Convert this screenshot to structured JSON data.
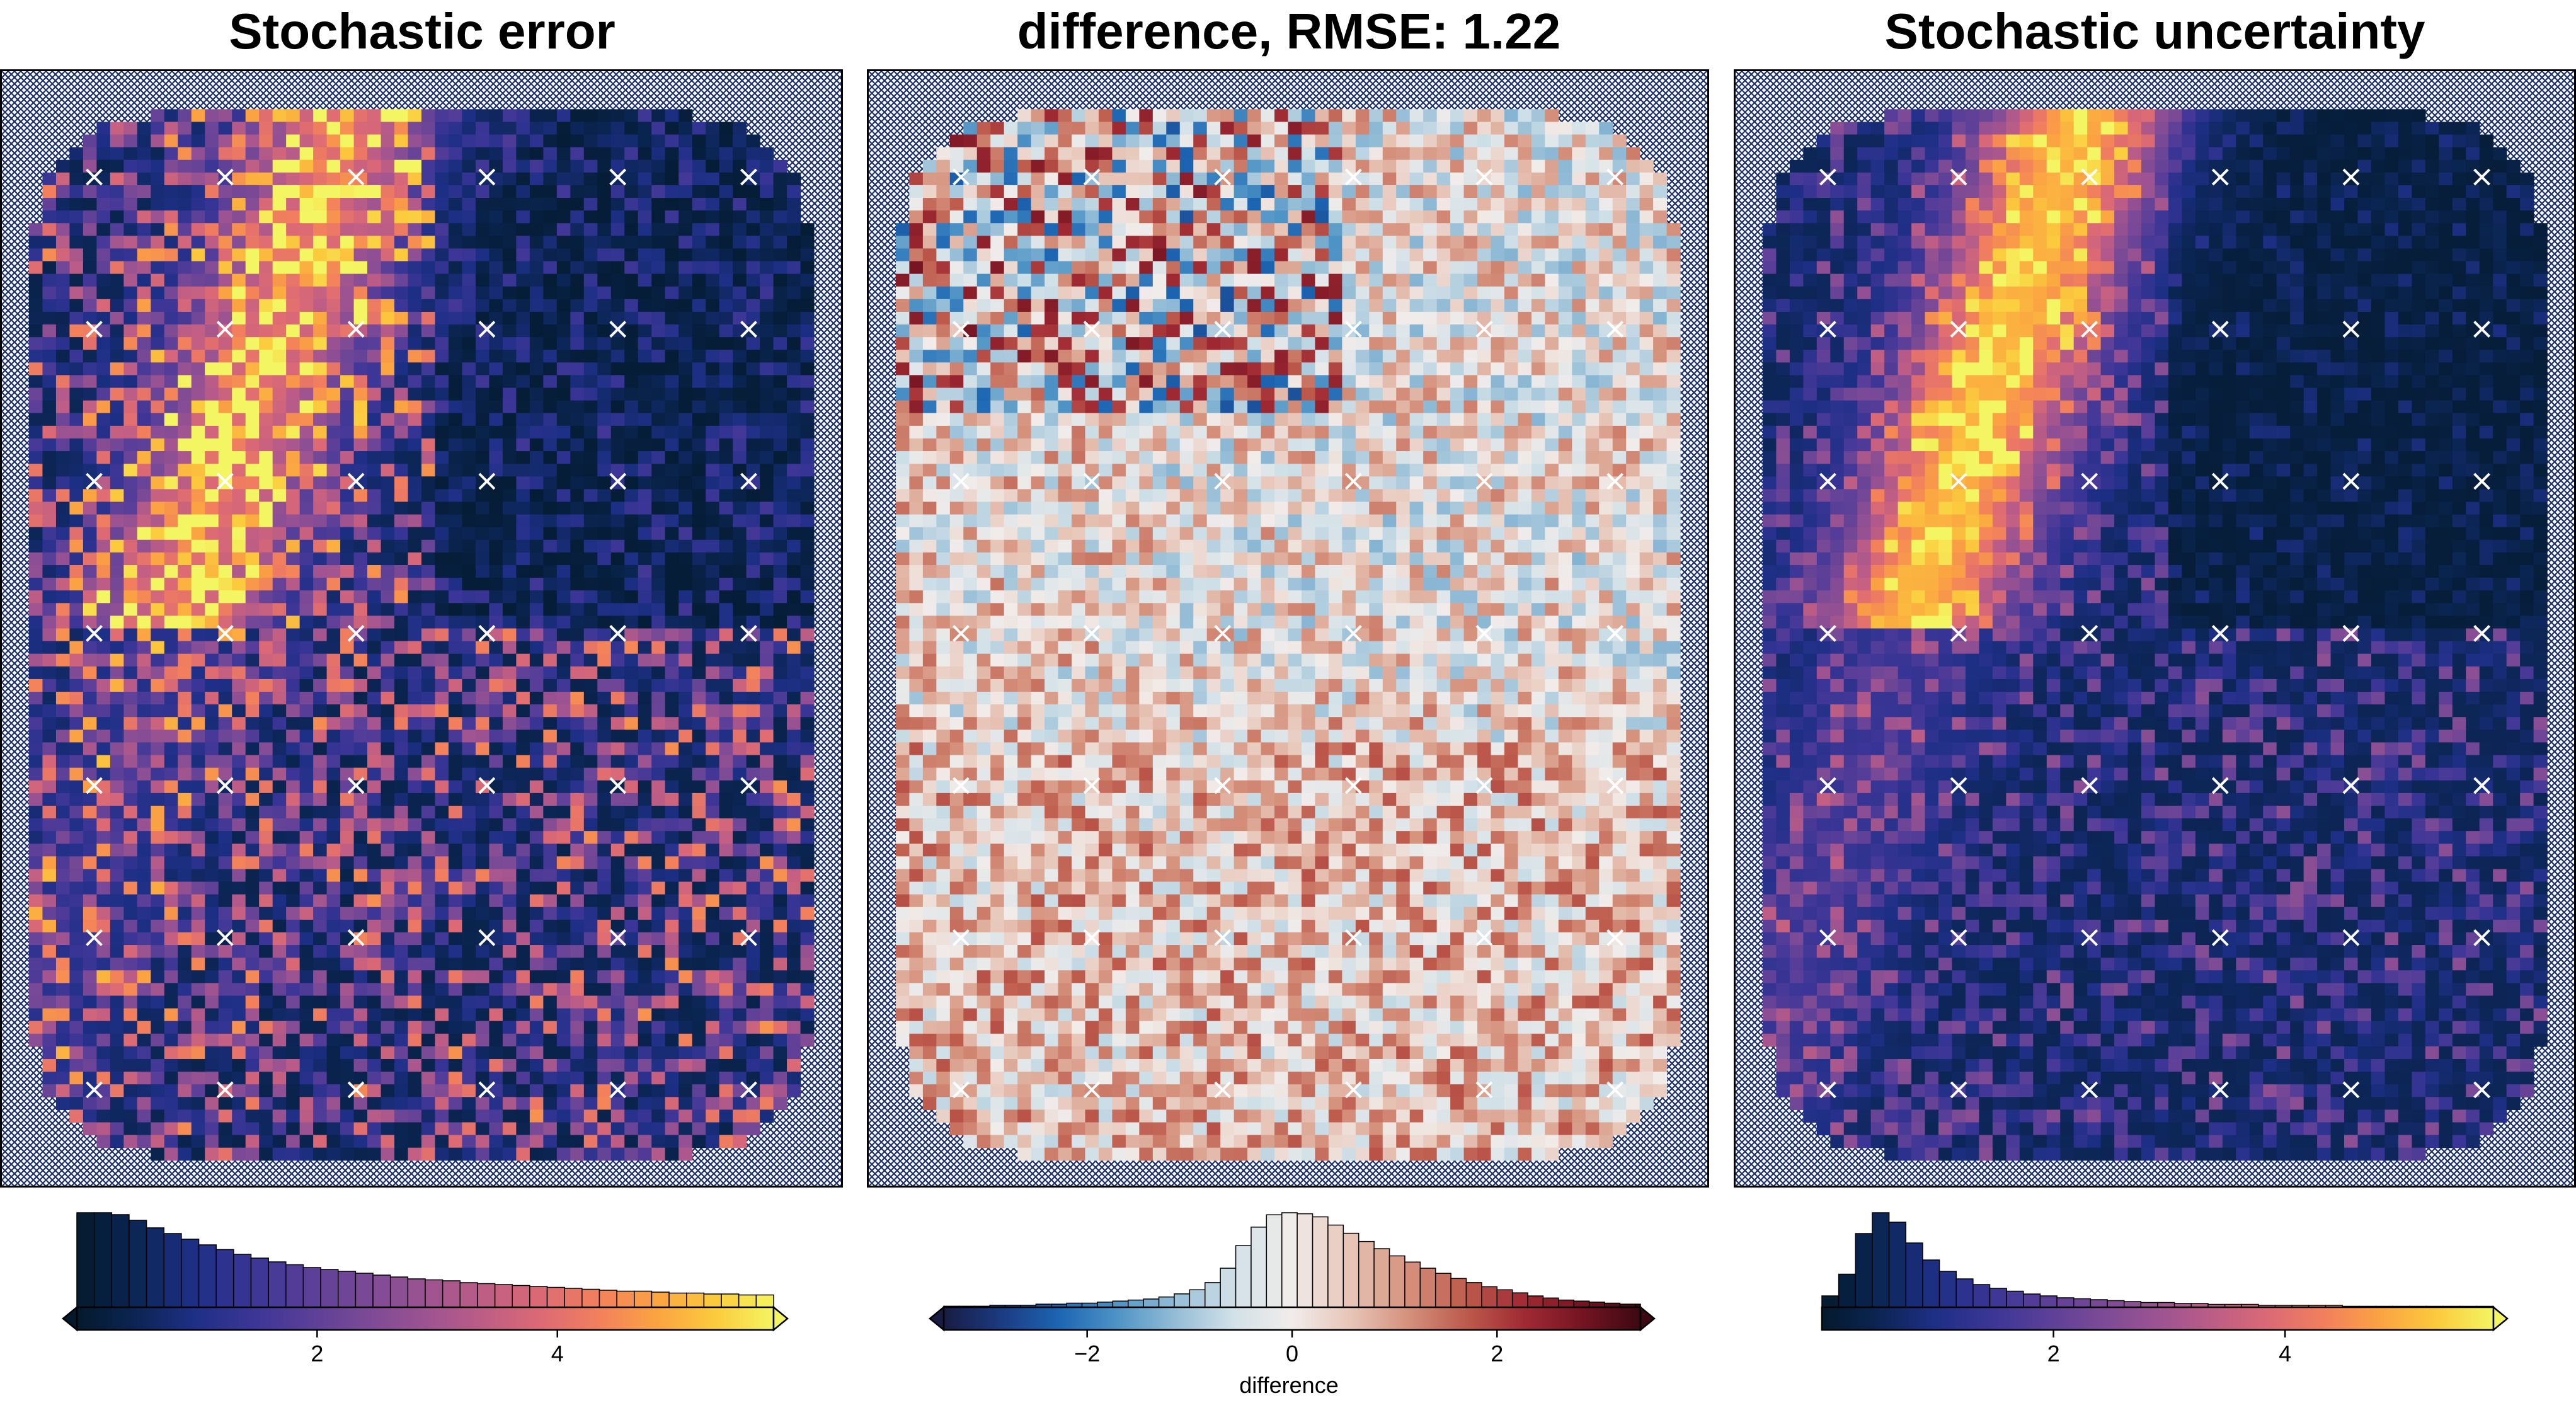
{
  "panels": [
    {
      "id": "stochastic-error",
      "title": "Stochastic error",
      "colormap": "thermal",
      "colorbar_ticks": [
        2,
        4
      ],
      "colorbar_label": ""
    },
    {
      "id": "difference",
      "title": "difference, RMSE: 1.22",
      "colormap": "balance",
      "colorbar_ticks": [
        -2,
        0,
        2
      ],
      "colorbar_tick_labels": [
        "−2",
        "0",
        "2"
      ],
      "colorbar_label": "difference"
    },
    {
      "id": "stochastic-uncertainty",
      "title": "Stochastic uncertainty",
      "colormap": "thermal",
      "colorbar_ticks": [
        2,
        4
      ],
      "colorbar_label": ""
    }
  ],
  "chart_data": [
    {
      "type": "heatmap",
      "title": "Stochastic error",
      "colorbar": {
        "min": 0,
        "max": 5.8,
        "ticks": [
          2,
          4
        ],
        "extend": "both"
      },
      "histogram": {
        "bin_start": 0,
        "bin_width": 0.145,
        "counts": [
          100,
          100,
          98,
          92,
          84,
          78,
          72,
          66,
          61,
          56,
          52,
          48,
          45,
          42,
          40,
          38,
          36,
          34,
          32,
          30,
          29,
          28,
          26,
          25,
          24,
          23,
          22,
          21,
          20,
          19,
          18,
          17,
          17,
          16,
          15,
          15,
          14,
          14,
          13,
          13
        ]
      },
      "grid": {
        "nx": 62,
        "ny": 88
      },
      "markers": "x"
    },
    {
      "type": "heatmap",
      "title": "difference, RMSE: 1.22",
      "rmse": 1.22,
      "colorbar": {
        "min": -3.4,
        "max": 3.4,
        "ticks": [
          -2,
          0,
          2
        ],
        "extend": "both",
        "label": "difference"
      },
      "histogram": {
        "bin_start": -3.4,
        "bin_width": 0.15,
        "counts": [
          1,
          1,
          1,
          2,
          2,
          2,
          3,
          3,
          4,
          4,
          5,
          6,
          7,
          8,
          10,
          13,
          17,
          24,
          38,
          60,
          78,
          90,
          92,
          91,
          88,
          80,
          72,
          64,
          57,
          50,
          44,
          38,
          33,
          28,
          24,
          20,
          17,
          14,
          11,
          9,
          7,
          6,
          5,
          4,
          3,
          3
        ]
      },
      "grid": {
        "nx": 62,
        "ny": 88
      },
      "markers": "x"
    },
    {
      "type": "heatmap",
      "title": "Stochastic uncertainty",
      "colorbar": {
        "min": 0,
        "max": 5.8,
        "ticks": [
          2,
          4
        ],
        "extend": "max"
      },
      "histogram": {
        "bin_start": 0,
        "bin_width": 0.145,
        "counts": [
          12,
          35,
          78,
          100,
          90,
          68,
          50,
          38,
          30,
          24,
          20,
          17,
          14,
          12,
          10,
          9,
          8,
          7,
          6,
          5,
          5,
          4,
          4,
          3,
          3,
          3,
          2,
          2,
          2,
          2,
          2,
          1,
          1,
          1,
          1,
          1,
          1,
          1,
          1,
          1
        ]
      },
      "grid": {
        "nx": 62,
        "ny": 88
      },
      "markers": "x"
    }
  ],
  "colors": {
    "thermal": [
      "#041a2c",
      "#0b2553",
      "#1d2f85",
      "#3a3596",
      "#5a3f98",
      "#7b4a96",
      "#9c5391",
      "#bd5d86",
      "#dc6a74",
      "#f2805c",
      "#fba442",
      "#fbcb3d",
      "#f4f562"
    ],
    "balance": [
      "#181c43",
      "#1b3b82",
      "#1c66b3",
      "#4f94c6",
      "#95bdd6",
      "#d2e1e8",
      "#f1ecea",
      "#e7c5b7",
      "#d5917c",
      "#bd5a4c",
      "#a02a33",
      "#751422",
      "#3c0912"
    ],
    "nan_pattern": "#1a2f66"
  }
}
